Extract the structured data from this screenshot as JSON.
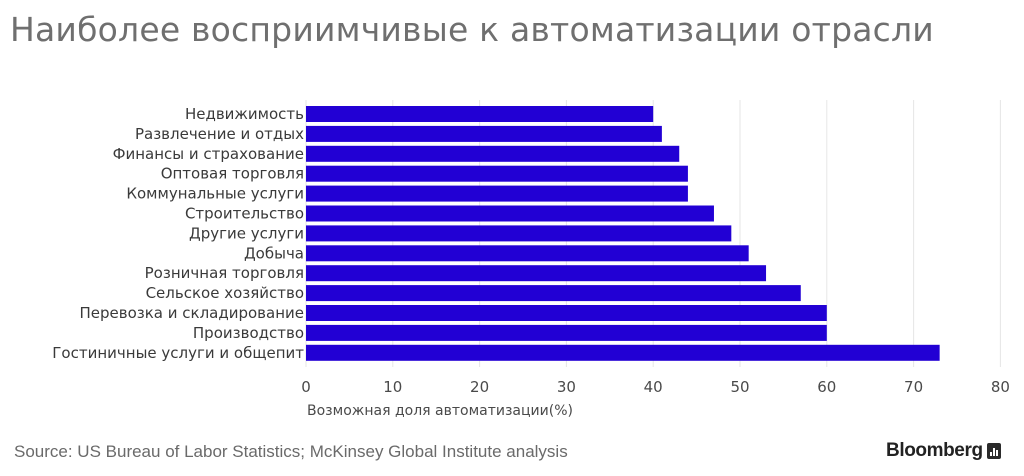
{
  "chart_data": {
    "type": "bar",
    "orientation": "horizontal",
    "title": "Наиболее восприимчивые к автоматизации отрасли",
    "categories": [
      "Недвижимость",
      "Развлечение и отдых",
      "Финансы и страхование",
      "Оптовая торговля",
      "Коммунальные услуги",
      "Строительство",
      "Другие услуги",
      "Добыча",
      "Розничная торговля",
      "Сельское хозяйство",
      "Перевозка и складирование",
      "Производство",
      "Гостиничные услуги и общепит"
    ],
    "values": [
      40,
      41,
      43,
      44,
      44,
      47,
      49,
      51,
      53,
      57,
      60,
      60,
      73
    ],
    "xlabel": "Возможная доля автоматизации(%)",
    "ylabel": "",
    "xlim": [
      0,
      80
    ],
    "xticks": [
      "0",
      "10",
      "20",
      "30",
      "40",
      "50",
      "60",
      "70",
      "80"
    ],
    "grid": true,
    "legend": "none",
    "bar_color": "#2200d4",
    "grid_color": "#e6e6e6"
  },
  "footer": {
    "source": "Source: US Bureau of Labor Statistics; McKinsey Global Institute analysis",
    "brand": "Bloomberg"
  }
}
